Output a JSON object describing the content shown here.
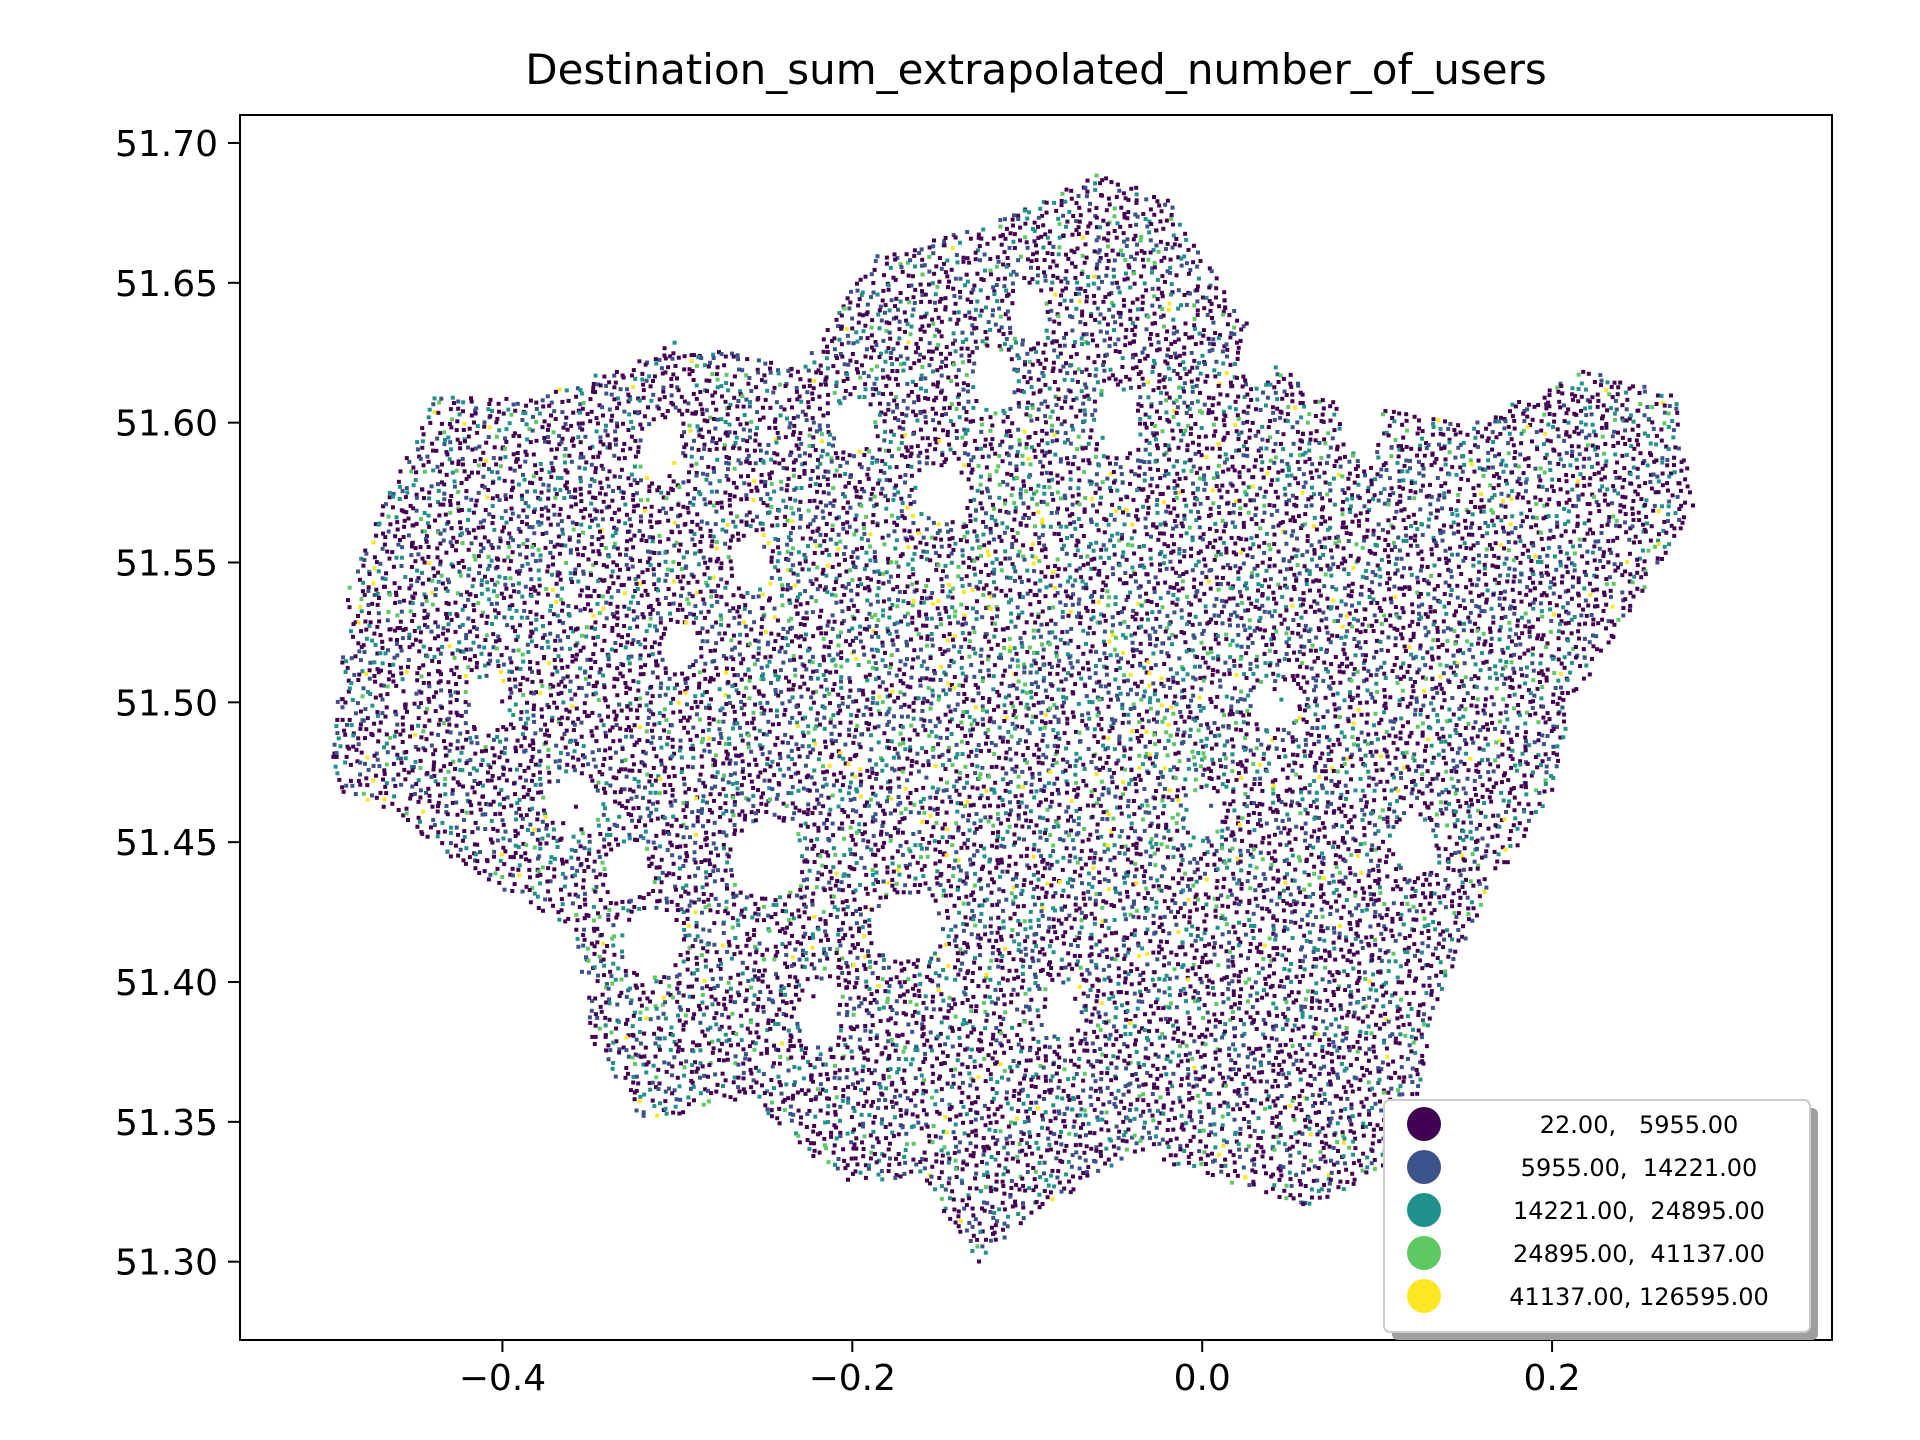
{
  "title": "Destination_sum_extrapolated_number_of_users",
  "chart_data": {
    "type": "scatter",
    "title": "Destination_sum_extrapolated_number_of_users",
    "xlabel": "",
    "ylabel": "",
    "xlim": [
      -0.55,
      0.36
    ],
    "ylim": [
      51.272,
      51.71
    ],
    "xticks": [
      -0.4,
      -0.2,
      0.0,
      0.2
    ],
    "xtick_labels": [
      "−0.4",
      "−0.2",
      "0.0",
      "0.2"
    ],
    "yticks": [
      51.3,
      51.35,
      51.4,
      51.45,
      51.5,
      51.55,
      51.6,
      51.65,
      51.7
    ],
    "ytick_labels": [
      "51.30",
      "51.35",
      "51.40",
      "51.45",
      "51.50",
      "51.55",
      "51.60",
      "51.65",
      "51.70"
    ],
    "grid": false,
    "legend_position": "lower-right",
    "legend": [
      {
        "label": "22.00,   5955.00",
        "color": "#440154"
      },
      {
        "label": "5955.00,  14221.00",
        "color": "#3b528b"
      },
      {
        "label": "14221.00,  24895.00",
        "color": "#21918c"
      },
      {
        "label": "24895.00,  41137.00",
        "color": "#5ec962"
      },
      {
        "label": "41137.00, 126595.00",
        "color": "#fde725"
      }
    ],
    "extent_outline": [
      [
        -0.5,
        51.47
      ],
      [
        -0.49,
        51.54
      ],
      [
        -0.47,
        51.57
      ],
      [
        -0.44,
        51.61
      ],
      [
        -0.38,
        51.61
      ],
      [
        -0.3,
        51.63
      ],
      [
        -0.23,
        51.62
      ],
      [
        -0.19,
        51.66
      ],
      [
        -0.13,
        51.67
      ],
      [
        -0.06,
        51.69
      ],
      [
        -0.02,
        51.68
      ],
      [
        0.02,
        51.64
      ],
      [
        0.06,
        51.61
      ],
      [
        0.15,
        51.6
      ],
      [
        0.22,
        51.62
      ],
      [
        0.27,
        51.61
      ],
      [
        0.28,
        51.57
      ],
      [
        0.24,
        51.53
      ],
      [
        0.21,
        51.5
      ],
      [
        0.2,
        51.47
      ],
      [
        0.16,
        51.43
      ],
      [
        0.13,
        51.39
      ],
      [
        0.12,
        51.34
      ],
      [
        0.06,
        51.32
      ],
      [
        0.01,
        51.33
      ],
      [
        -0.04,
        51.34
      ],
      [
        -0.09,
        51.32
      ],
      [
        -0.13,
        51.3
      ],
      [
        -0.16,
        51.33
      ],
      [
        -0.21,
        51.33
      ],
      [
        -0.26,
        51.36
      ],
      [
        -0.32,
        51.35
      ],
      [
        -0.35,
        51.38
      ],
      [
        -0.36,
        51.42
      ],
      [
        -0.42,
        51.44
      ],
      [
        -0.46,
        51.46
      ]
    ],
    "holes": [
      [
        -0.315,
        51.415,
        0.017,
        0.012
      ],
      [
        -0.33,
        51.44,
        0.012,
        0.01
      ],
      [
        -0.25,
        51.445,
        0.02,
        0.014
      ],
      [
        -0.36,
        51.465,
        0.014,
        0.01
      ],
      [
        -0.31,
        51.59,
        0.012,
        0.012
      ],
      [
        -0.26,
        51.55,
        0.01,
        0.01
      ],
      [
        -0.2,
        51.6,
        0.012,
        0.01
      ],
      [
        -0.15,
        51.575,
        0.014,
        0.01
      ],
      [
        -0.12,
        51.615,
        0.012,
        0.01
      ],
      [
        -0.1,
        51.64,
        0.01,
        0.01
      ],
      [
        0.03,
        51.625,
        0.01,
        0.012
      ],
      [
        -0.05,
        51.6,
        0.013,
        0.012
      ],
      [
        -0.17,
        51.42,
        0.02,
        0.012
      ],
      [
        0.04,
        51.5,
        0.012,
        0.008
      ],
      [
        0.0,
        51.46,
        0.01,
        0.008
      ],
      [
        0.12,
        51.45,
        0.012,
        0.01
      ],
      [
        0.09,
        51.6,
        0.012,
        0.01
      ],
      [
        -0.41,
        51.5,
        0.012,
        0.01
      ],
      [
        -0.22,
        51.39,
        0.012,
        0.012
      ],
      [
        -0.08,
        51.39,
        0.01,
        0.01
      ],
      [
        -0.3,
        51.52,
        0.01,
        0.008
      ]
    ]
  }
}
